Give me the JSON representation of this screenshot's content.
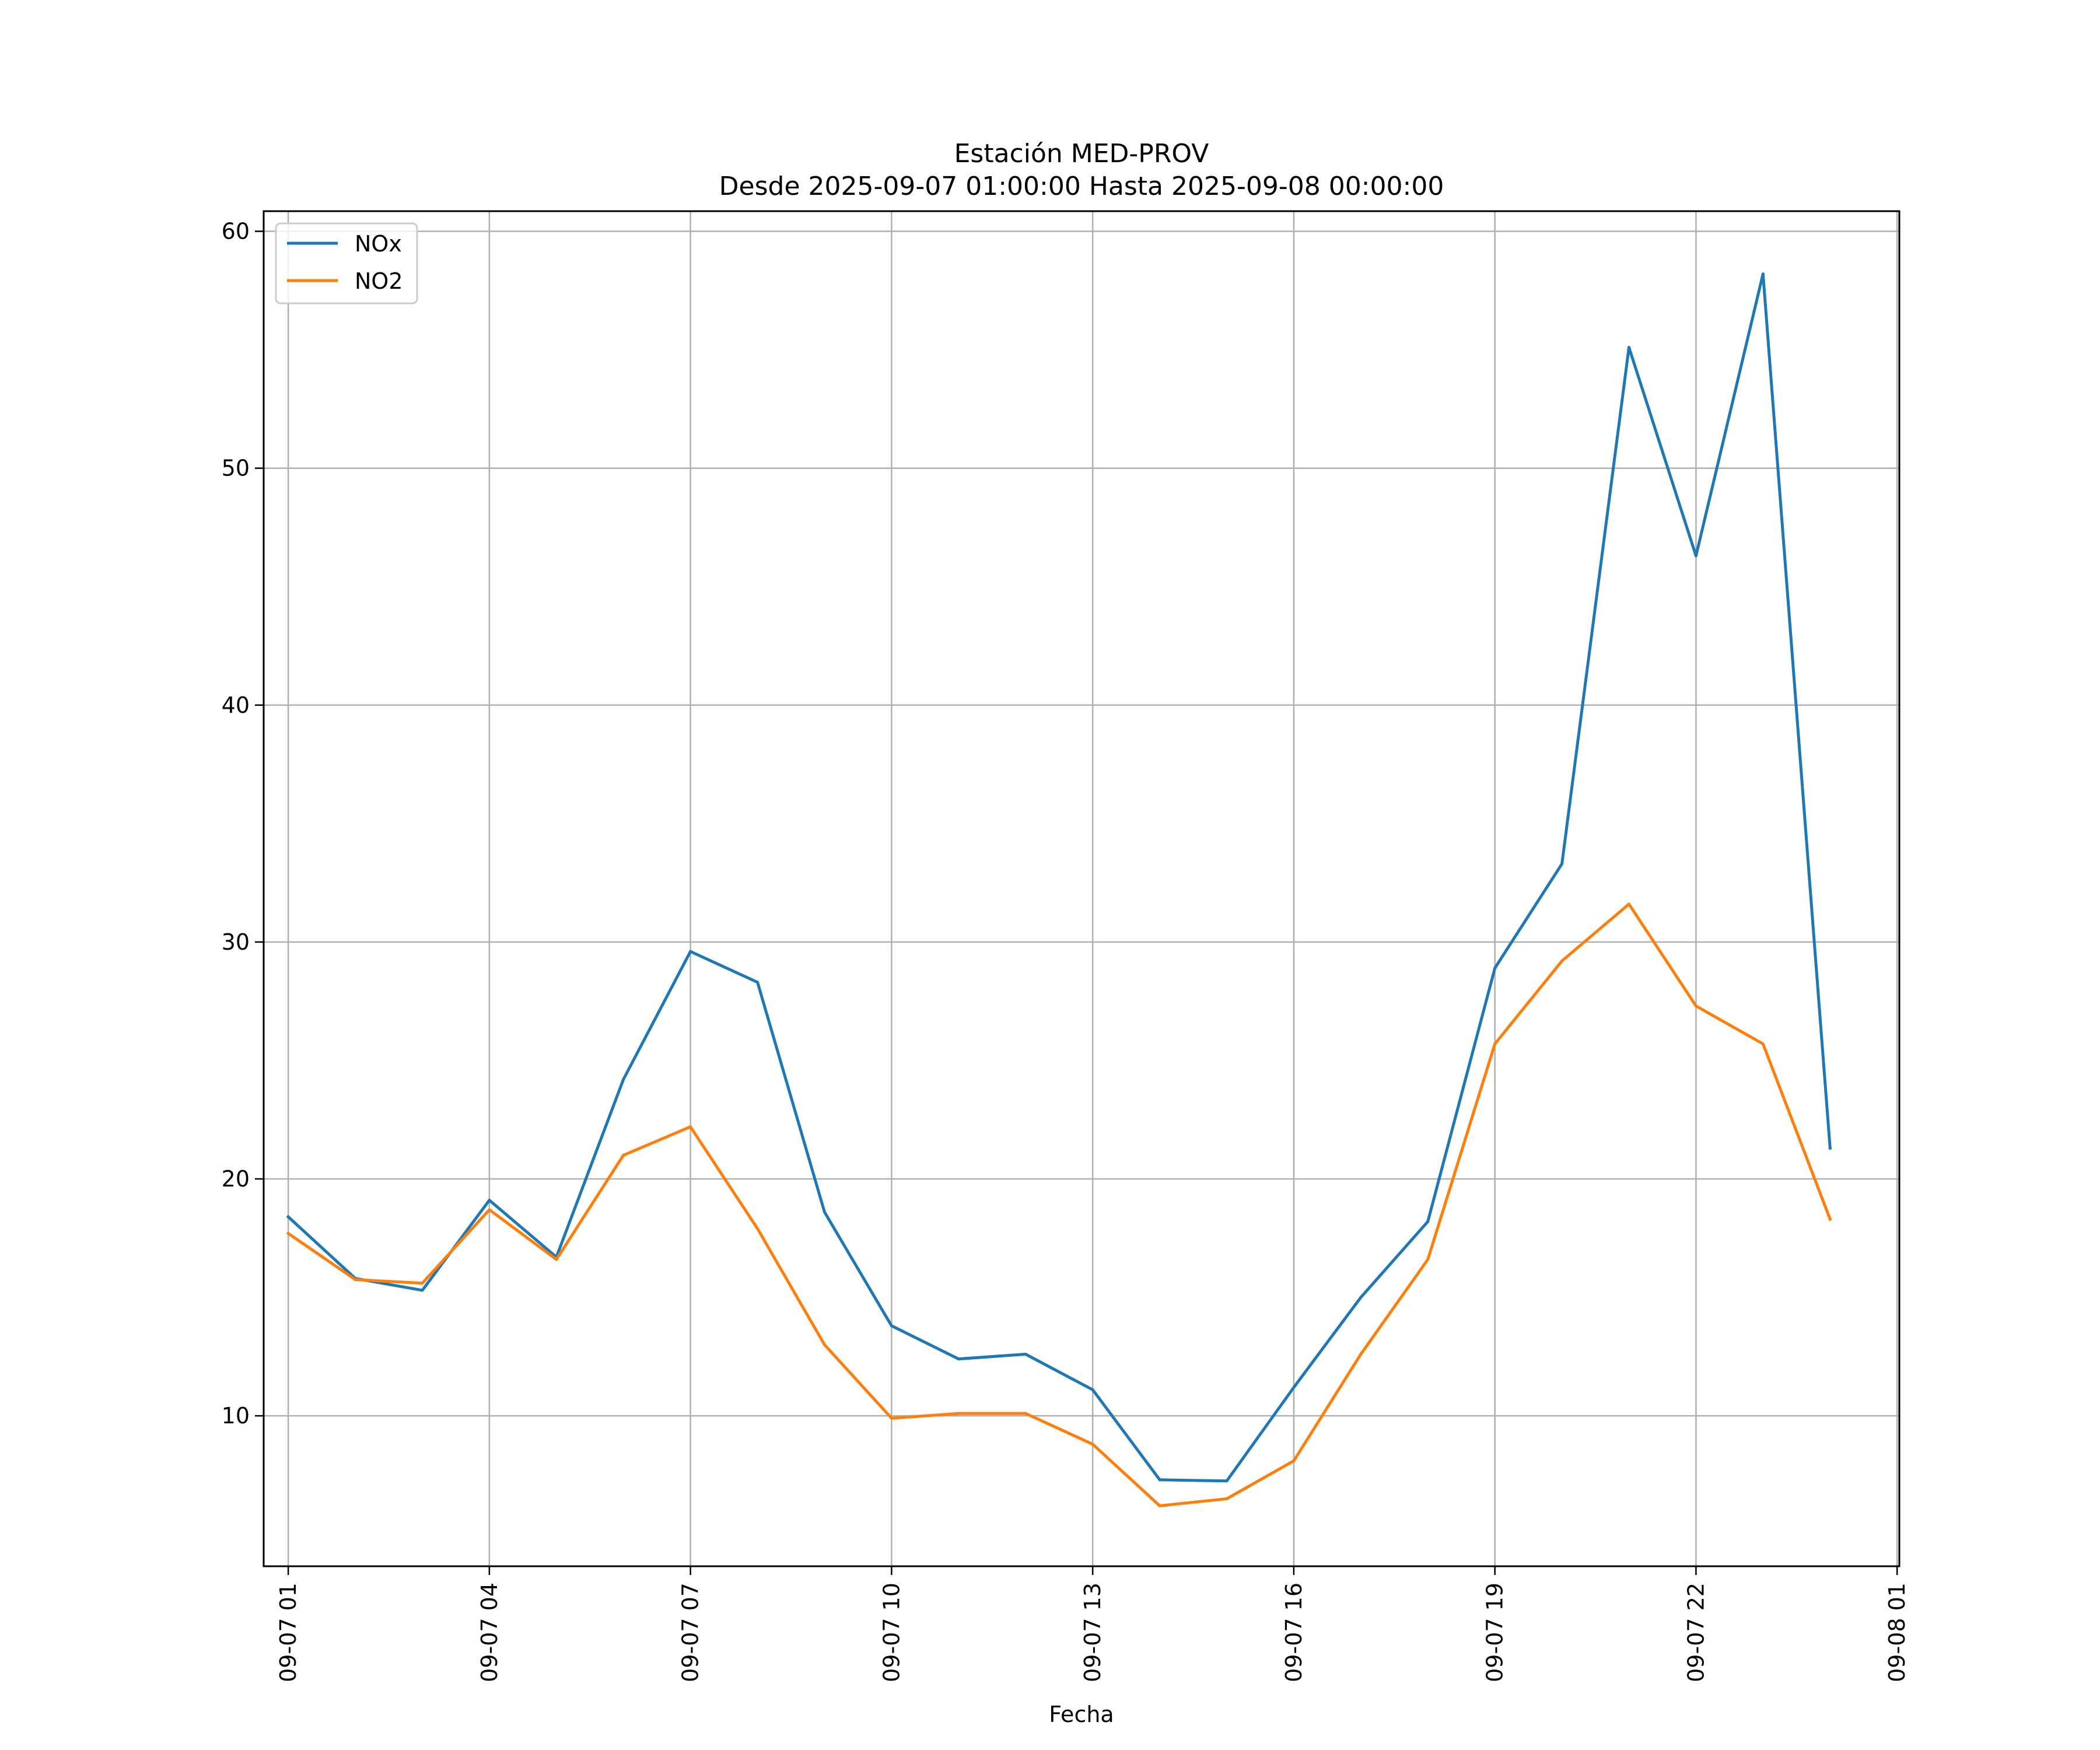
{
  "chart_data": {
    "type": "line",
    "title": "Estación MED-PROV",
    "subtitle": "Desde 2025-09-07 01:00:00 Hasta 2025-09-08 00:00:00",
    "xlabel": "Fecha",
    "ylabel": "",
    "x": [
      "2025-09-07 01:00",
      "2025-09-07 02:00",
      "2025-09-07 03:00",
      "2025-09-07 04:00",
      "2025-09-07 05:00",
      "2025-09-07 06:00",
      "2025-09-07 07:00",
      "2025-09-07 08:00",
      "2025-09-07 09:00",
      "2025-09-07 10:00",
      "2025-09-07 11:00",
      "2025-09-07 12:00",
      "2025-09-07 13:00",
      "2025-09-07 14:00",
      "2025-09-07 15:00",
      "2025-09-07 16:00",
      "2025-09-07 17:00",
      "2025-09-07 18:00",
      "2025-09-07 19:00",
      "2025-09-07 20:00",
      "2025-09-07 21:00",
      "2025-09-07 22:00",
      "2025-09-07 23:00",
      "2025-09-08 00:00"
    ],
    "series": [
      {
        "name": "NOx",
        "color": "#1f77b4",
        "values": [
          18.4,
          15.8,
          15.3,
          19.1,
          16.7,
          24.2,
          29.6,
          28.3,
          18.6,
          13.8,
          12.4,
          12.6,
          11.1,
          7.3,
          7.25,
          11.2,
          15.0,
          18.2,
          28.9,
          33.3,
          55.1,
          46.3,
          58.2,
          21.3
        ]
      },
      {
        "name": "NO2",
        "color": "#ff7f0e",
        "values": [
          17.7,
          15.75,
          15.6,
          18.7,
          16.6,
          21.0,
          22.2,
          17.9,
          13.0,
          9.9,
          10.1,
          10.1,
          8.8,
          6.2,
          6.5,
          8.1,
          12.6,
          16.6,
          25.7,
          29.2,
          31.6,
          27.3,
          25.7,
          18.3
        ]
      }
    ],
    "x_ticks": [
      "2025-09-07 01:00",
      "2025-09-07 04:00",
      "2025-09-07 07:00",
      "2025-09-07 10:00",
      "2025-09-07 13:00",
      "2025-09-07 16:00",
      "2025-09-07 19:00",
      "2025-09-07 22:00",
      "2025-09-08 01:00"
    ],
    "x_tick_labels": [
      "09-07 01",
      "09-07 04",
      "09-07 07",
      "09-07 10",
      "09-07 13",
      "09-07 16",
      "09-07 19",
      "09-07 22",
      "09-08 01"
    ],
    "y_ticks": [
      10,
      20,
      30,
      40,
      50,
      60
    ],
    "y_tick_labels": [
      "10",
      "20",
      "30",
      "40",
      "50",
      "60"
    ],
    "ylim": [
      3.65,
      60.85
    ],
    "xlim": [
      "2025-09-07 00:38",
      "2025-09-08 01:02"
    ],
    "grid": true,
    "legend_position": "top-left"
  }
}
